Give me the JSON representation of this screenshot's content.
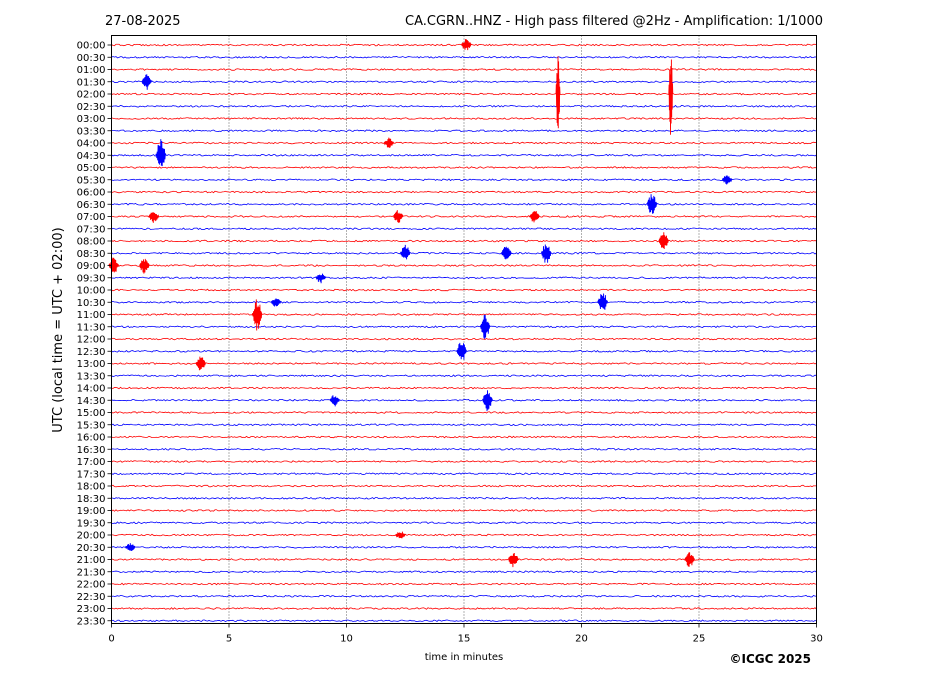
{
  "header": {
    "date": "27-08-2025",
    "title": "CA.CGRN..HNZ - High pass filtered @2Hz - Amplification: 1/1000"
  },
  "footer": {
    "copyright": "©ICGC 2025"
  },
  "colors": {
    "trace_a": "#ff0000",
    "trace_b": "#0000ff",
    "grid": "#000000"
  },
  "chart_data": {
    "type": "line",
    "subtype": "helicorder",
    "xlabel": "time in minutes",
    "ylabel": "UTC (local time = UTC + 02:00)",
    "xlim": [
      0,
      30
    ],
    "x_ticks": [
      0,
      5,
      10,
      15,
      20,
      25,
      30
    ],
    "grid": "vertical dotted at x ticks",
    "row_labels": [
      "00:00",
      "00:30",
      "01:00",
      "01:30",
      "02:00",
      "02:30",
      "03:00",
      "03:30",
      "04:00",
      "04:30",
      "05:00",
      "05:30",
      "06:00",
      "06:30",
      "07:00",
      "07:30",
      "08:00",
      "08:30",
      "09:00",
      "09:30",
      "10:00",
      "10:30",
      "11:00",
      "11:30",
      "12:00",
      "12:30",
      "13:00",
      "13:30",
      "14:00",
      "14:30",
      "15:00",
      "15:30",
      "16:00",
      "16:30",
      "17:00",
      "17:30",
      "18:00",
      "18:30",
      "19:00",
      "19:30",
      "20:00",
      "20:30",
      "21:00",
      "21:30",
      "22:00",
      "22:30",
      "23:00",
      "23:30"
    ],
    "row_colors": [
      "red",
      "blue"
    ],
    "events": [
      {
        "row": "00:00",
        "minute": 15.1,
        "amplitude": 0.6
      },
      {
        "row": "01:30",
        "minute": 1.5,
        "amplitude": 0.8
      },
      {
        "row": "02:00",
        "minute": 19.0,
        "amplitude": 4.0
      },
      {
        "row": "02:00",
        "minute": 23.8,
        "amplitude": 4.5
      },
      {
        "row": "04:00",
        "minute": 11.8,
        "amplitude": 0.5
      },
      {
        "row": "04:30",
        "minute": 2.1,
        "amplitude": 1.5
      },
      {
        "row": "05:30",
        "minute": 26.2,
        "amplitude": 0.5
      },
      {
        "row": "06:30",
        "minute": 23.0,
        "amplitude": 1.0
      },
      {
        "row": "07:00",
        "minute": 1.8,
        "amplitude": 0.6
      },
      {
        "row": "07:00",
        "minute": 12.2,
        "amplitude": 0.6
      },
      {
        "row": "07:00",
        "minute": 18.0,
        "amplitude": 0.6
      },
      {
        "row": "08:00",
        "minute": 23.5,
        "amplitude": 0.8
      },
      {
        "row": "08:30",
        "minute": 12.5,
        "amplitude": 0.8
      },
      {
        "row": "08:30",
        "minute": 16.8,
        "amplitude": 0.9
      },
      {
        "row": "08:30",
        "minute": 18.5,
        "amplitude": 1.0
      },
      {
        "row": "09:00",
        "minute": 0.1,
        "amplitude": 0.8
      },
      {
        "row": "09:00",
        "minute": 1.4,
        "amplitude": 0.8
      },
      {
        "row": "09:30",
        "minute": 8.9,
        "amplitude": 0.5
      },
      {
        "row": "10:30",
        "minute": 7.0,
        "amplitude": 0.5
      },
      {
        "row": "10:30",
        "minute": 20.9,
        "amplitude": 1.0
      },
      {
        "row": "11:00",
        "minute": 6.2,
        "amplitude": 1.5
      },
      {
        "row": "11:30",
        "minute": 15.9,
        "amplitude": 1.2
      },
      {
        "row": "12:30",
        "minute": 14.9,
        "amplitude": 1.0
      },
      {
        "row": "13:00",
        "minute": 3.8,
        "amplitude": 0.7
      },
      {
        "row": "14:30",
        "minute": 9.5,
        "amplitude": 0.6
      },
      {
        "row": "14:30",
        "minute": 16.0,
        "amplitude": 1.0
      },
      {
        "row": "20:00",
        "minute": 12.3,
        "amplitude": 0.4
      },
      {
        "row": "20:30",
        "minute": 0.8,
        "amplitude": 0.4
      },
      {
        "row": "21:00",
        "minute": 17.1,
        "amplitude": 0.8
      },
      {
        "row": "21:00",
        "minute": 24.6,
        "amplitude": 0.7
      }
    ]
  }
}
